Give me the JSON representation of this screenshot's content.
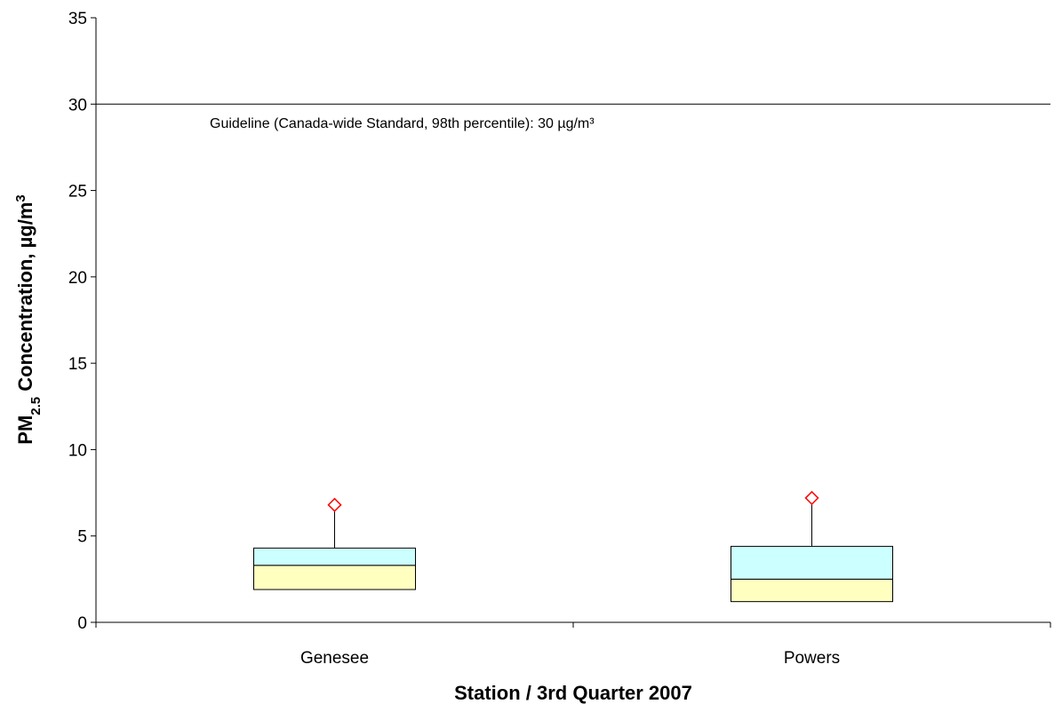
{
  "chart_data": {
    "type": "box",
    "annotation": "Guideline (Canada-wide Standard, 98th percentile): 30 µg/m³",
    "guideline": 30,
    "x_label": "Station / 3rd Quarter 2007",
    "y_label": {
      "main": "PM",
      "sub": "2.5",
      "rest": " Concentration, µg/m",
      "sup": "3"
    },
    "categories": [
      "Genesee",
      "Powers"
    ],
    "q1": [
      1.9,
      1.2
    ],
    "median": [
      3.3,
      2.5
    ],
    "q3": [
      4.3,
      4.4
    ],
    "max": [
      6.8,
      7.2
    ],
    "lower_color": "#ffffc0",
    "upper_color": "#ccffff",
    "marker_color": "#ff0000",
    "ylim": [
      0,
      35
    ],
    "yticks": [
      0,
      5,
      10,
      15,
      20,
      25,
      30,
      35
    ]
  }
}
